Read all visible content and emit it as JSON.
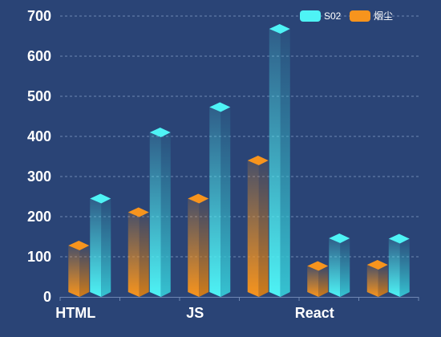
{
  "colors": {
    "background": "#2a4476",
    "grid": "#6f87b3",
    "series_s02": "#4ef3f5",
    "series_smoke": "#f7941d"
  },
  "chart_data": {
    "type": "bar",
    "style": "3d-pillar",
    "categories": [
      "HTML",
      "",
      "JS",
      "",
      "React",
      ""
    ],
    "x_tick_labels": [
      "HTML",
      "JS",
      "React"
    ],
    "series": [
      {
        "name": "S02",
        "color": "#4ef3f5",
        "values": [
          245,
          410,
          473,
          668,
          146,
          145
        ]
      },
      {
        "name": "烟尘",
        "color": "#f7941d",
        "values": [
          128,
          211,
          245,
          340,
          77,
          80
        ]
      }
    ],
    "ylim": [
      0,
      700
    ],
    "yticks": [
      0,
      100,
      200,
      300,
      400,
      500,
      600,
      700
    ],
    "grid": true,
    "legend_position": "top-right"
  }
}
